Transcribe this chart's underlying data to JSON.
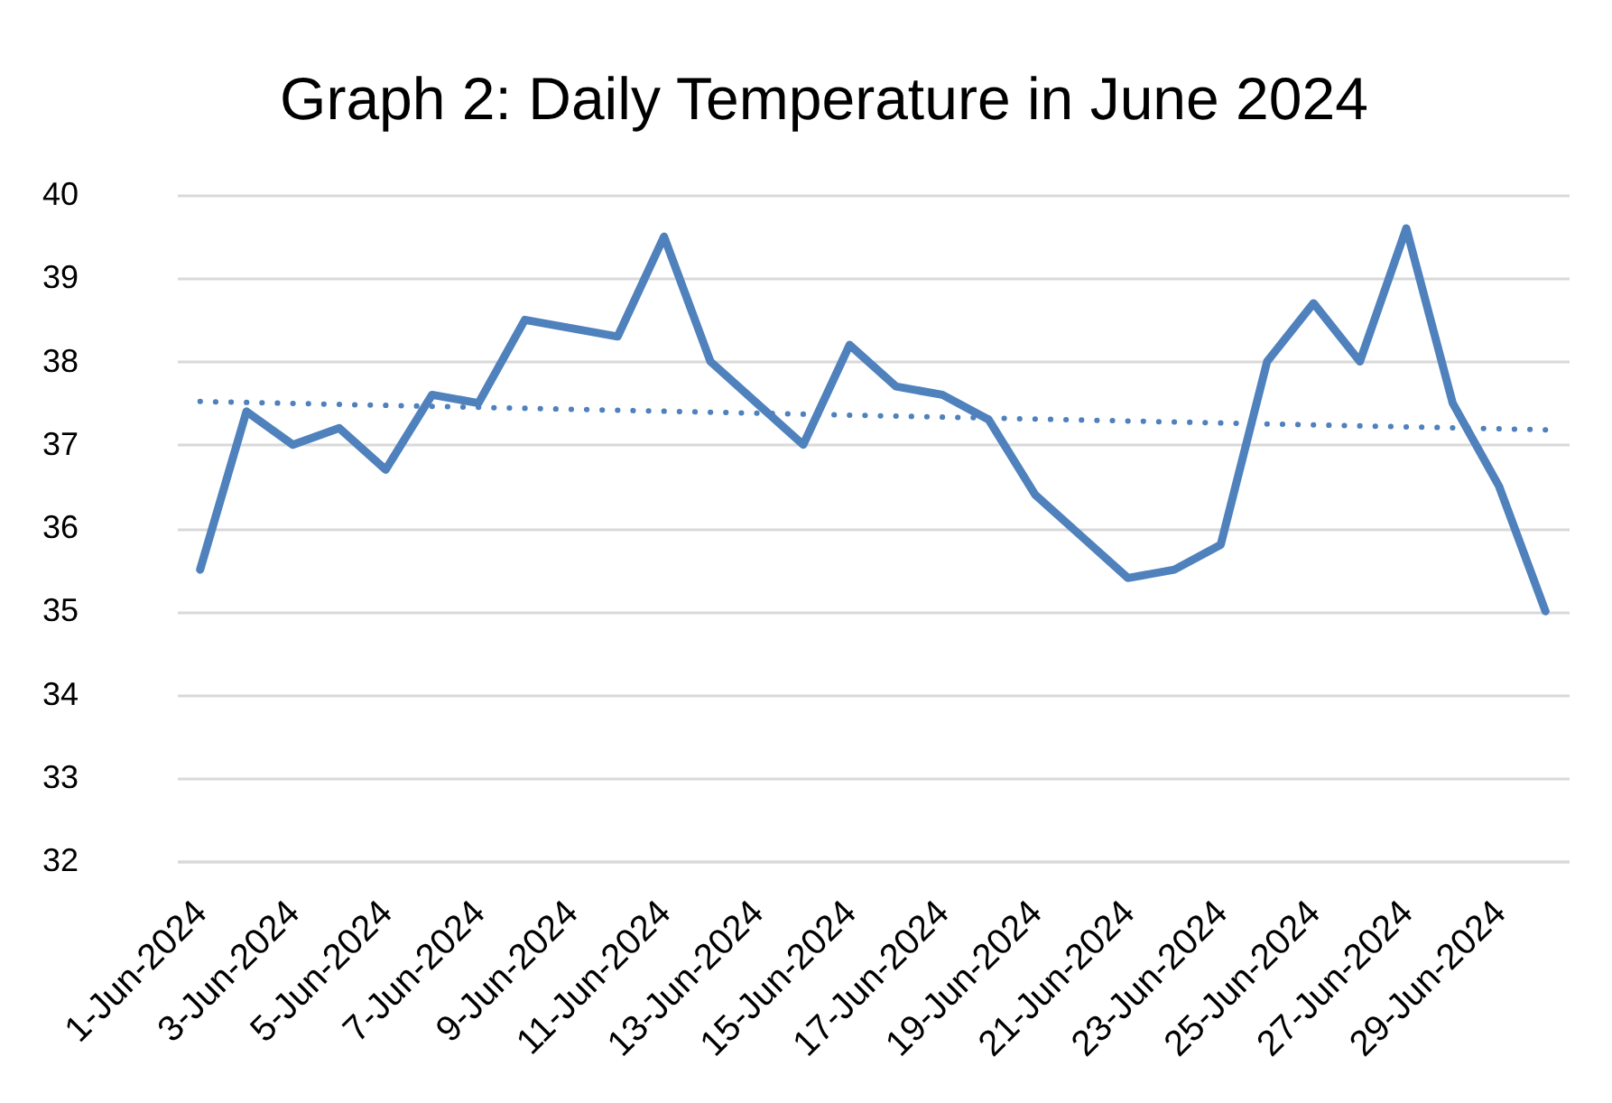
{
  "chart_data": {
    "type": "line",
    "title": "Graph 2: Daily Temperature in June 2024",
    "x": [
      "2024-06-01",
      "2024-06-02",
      "2024-06-03",
      "2024-06-04",
      "2024-06-05",
      "2024-06-06",
      "2024-06-07",
      "2024-06-08",
      "2024-06-09",
      "2024-06-10",
      "2024-06-11",
      "2024-06-12",
      "2024-06-13",
      "2024-06-14",
      "2024-06-15",
      "2024-06-16",
      "2024-06-17",
      "2024-06-18",
      "2024-06-19",
      "2024-06-20",
      "2024-06-21",
      "2024-06-22",
      "2024-06-23",
      "2024-06-24",
      "2024-06-25",
      "2024-06-26",
      "2024-06-27",
      "2024-06-28",
      "2024-06-29",
      "2024-06-30"
    ],
    "series": [
      {
        "color": "#4f81bd",
        "line_style": "solid",
        "values": [
          35.5,
          37.4,
          37.0,
          37.2,
          36.7,
          37.6,
          37.5,
          38.5,
          38.4,
          38.3,
          39.5,
          38.0,
          37.5,
          37.0,
          38.2,
          37.7,
          37.6,
          37.3,
          36.4,
          35.9,
          35.4,
          35.5,
          35.8,
          38.0,
          38.7,
          38.0,
          39.6,
          37.5,
          36.5,
          35.0
        ]
      },
      {
        "type": "line",
        "color": "#4f81bd",
        "line_style": "dotted",
        "x": [
          "2024-06-01",
          "2024-06-30"
        ],
        "values": [
          37.52,
          37.18
        ]
      }
    ],
    "xlim": [
      "2024-05-31T12:00",
      "2024-06-30T12:00"
    ],
    "xticks": [
      {
        "value": "2024-06-01",
        "label": "1-Jun-2024"
      },
      {
        "value": "2024-06-03",
        "label": "3-Jun-2024"
      },
      {
        "value": "2024-06-05",
        "label": "5-Jun-2024"
      },
      {
        "value": "2024-06-07",
        "label": "7-Jun-2024"
      },
      {
        "value": "2024-06-09",
        "label": "9-Jun-2024"
      },
      {
        "value": "2024-06-11",
        "label": "11-Jun-2024"
      },
      {
        "value": "2024-06-13",
        "label": "13-Jun-2024"
      },
      {
        "value": "2024-06-15",
        "label": "15-Jun-2024"
      },
      {
        "value": "2024-06-17",
        "label": "17-Jun-2024"
      },
      {
        "value": "2024-06-19",
        "label": "19-Jun-2024"
      },
      {
        "value": "2024-06-21",
        "label": "21-Jun-2024"
      },
      {
        "value": "2024-06-23",
        "label": "23-Jun-2024"
      },
      {
        "value": "2024-06-25",
        "label": "25-Jun-2024"
      },
      {
        "value": "2024-06-27",
        "label": "27-Jun-2024"
      },
      {
        "value": "2024-06-29",
        "label": "29-Jun-2024"
      }
    ],
    "ylim": [
      32,
      40
    ],
    "yticks": [
      32,
      33,
      34,
      35,
      36,
      37,
      38,
      39,
      40
    ],
    "grid": "y"
  }
}
